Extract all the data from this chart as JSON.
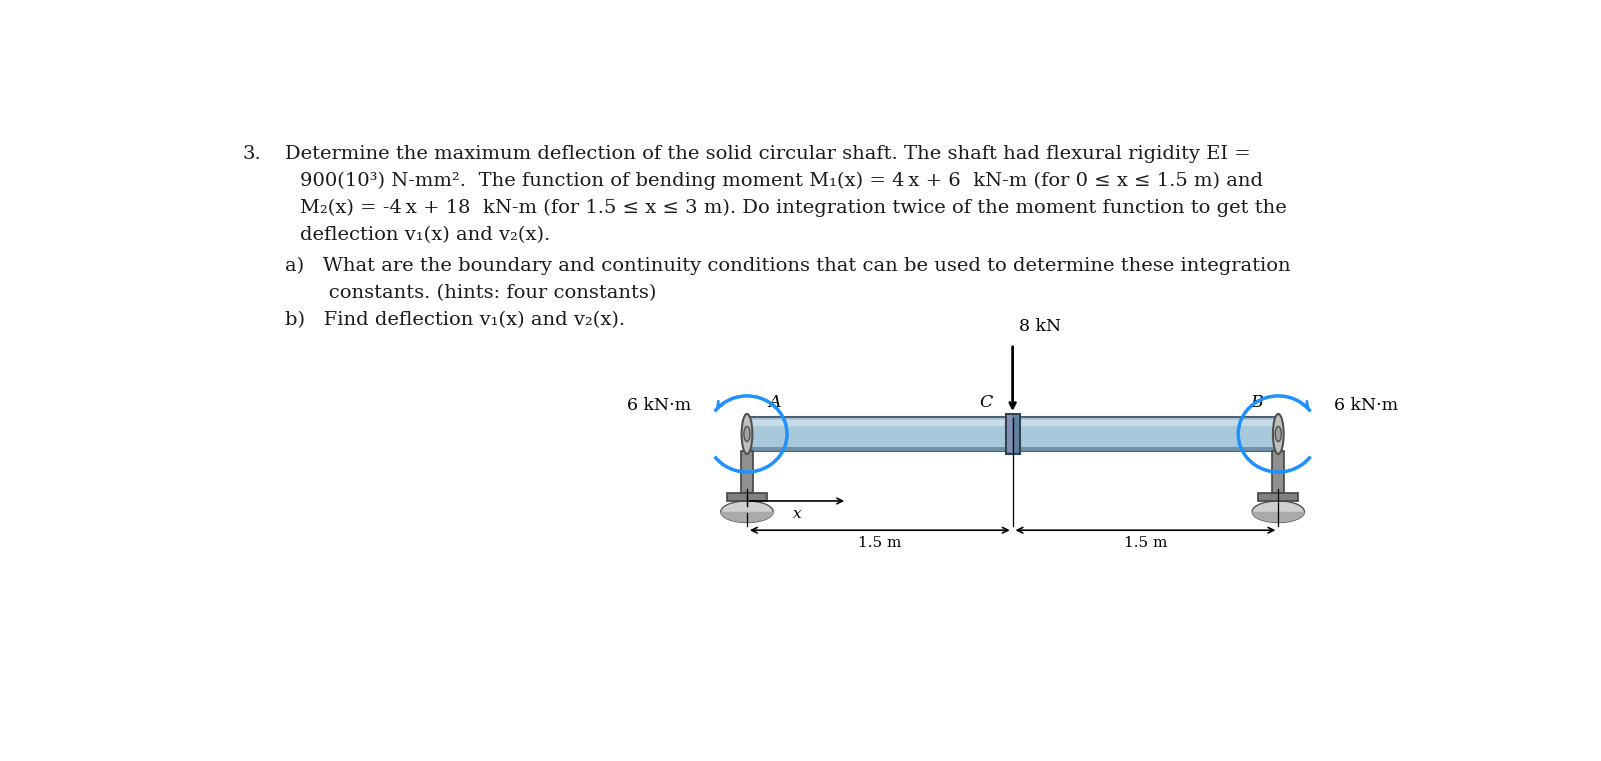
{
  "bg_color": "#ffffff",
  "text_color": "#1a1a1a",
  "shaft_color": "#a8c8dc",
  "shaft_highlight": "#c8dce8",
  "shaft_shadow": "#7090a8",
  "shaft_dark": "#506070",
  "collar_color": "#909090",
  "collar_edge": "#505050",
  "support_post_color": "#909090",
  "support_base_color": "#808080",
  "support_dome_color": "#b0b0b0",
  "connector_color": "#6080a0",
  "connector_edge": "#304050",
  "moment_color": "#1e90ff",
  "dim_color": "#000000",
  "force_color": "#000000",
  "line1_num": "3.",
  "line1_text": "Determine the maximum deflection of the solid circular shaft. The shaft had flexural rigidity EI =",
  "line2": "900(10³) N-mm².  The function of bending moment M₁(x) = 4 x + 6  kN-m (for 0 ≤ x ≤ 1.5 m) and",
  "line3": "M₂(x) = -4 x + 18  kN-m (for 1.5 ≤ x ≤ 3 m). Do integration twice of the moment function to get the",
  "line4": "deflection v₁(x) and v₂(x).",
  "line5a": "a)   What are the boundary and continuity conditions that can be used to determine these integration",
  "line5b": "       constants. (hints: four constants)",
  "line6": "b)   Find deflection v₁(x) and v₂(x).",
  "label_8kN": "8 kN",
  "label_6kNm_left": "6 kN·m",
  "label_6kNm_right": "6 kN·m",
  "label_A": "A",
  "label_B": "B",
  "label_C": "C",
  "label_x": "x",
  "label_15m_1": "1.5 m",
  "label_15m_2": "1.5 m",
  "fontsize_main": 14,
  "fontsize_diagram": 12.5
}
